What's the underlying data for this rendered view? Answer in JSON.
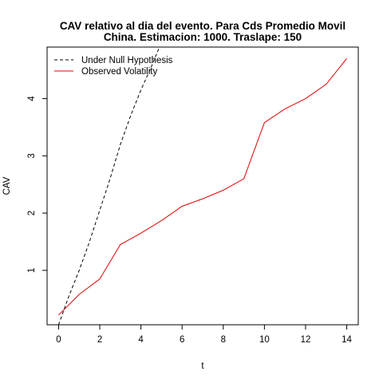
{
  "chart_data": {
    "type": "line",
    "title_line1": "CAV relativo al dia del evento. Para Cds Promedio Movil",
    "title_line2": "China. Estimacion: 1000. Traslape: 150",
    "xlabel": "t",
    "ylabel": "CAV",
    "xlim": [
      -0.56,
      14.56
    ],
    "ylim": [
      0.05,
      4.9
    ],
    "xticks": [
      0,
      2,
      4,
      6,
      8,
      10,
      12,
      14
    ],
    "yticks": [
      1,
      2,
      3,
      4
    ],
    "legend_position": "top-left",
    "series": [
      {
        "name": "Under Null Hypothesis",
        "color": "#000000",
        "dash": "dashed",
        "x": [
          0,
          0.5,
          1,
          1.5,
          2,
          2.5,
          3,
          3.5,
          4,
          4.5,
          4.9
        ],
        "y": [
          0.05,
          0.55,
          1.0,
          1.5,
          2.05,
          2.6,
          3.2,
          3.7,
          4.15,
          4.55,
          4.9
        ]
      },
      {
        "name": "Observed Volatility",
        "color": "#e00000",
        "dash": "solid",
        "x": [
          0,
          1,
          2,
          3,
          4,
          5,
          6,
          7,
          8,
          9,
          10,
          11,
          12,
          13,
          14
        ],
        "y": [
          0.22,
          0.58,
          0.85,
          1.45,
          1.65,
          1.87,
          2.12,
          2.25,
          2.4,
          2.6,
          3.58,
          3.82,
          4.0,
          4.25,
          4.7
        ]
      }
    ]
  }
}
